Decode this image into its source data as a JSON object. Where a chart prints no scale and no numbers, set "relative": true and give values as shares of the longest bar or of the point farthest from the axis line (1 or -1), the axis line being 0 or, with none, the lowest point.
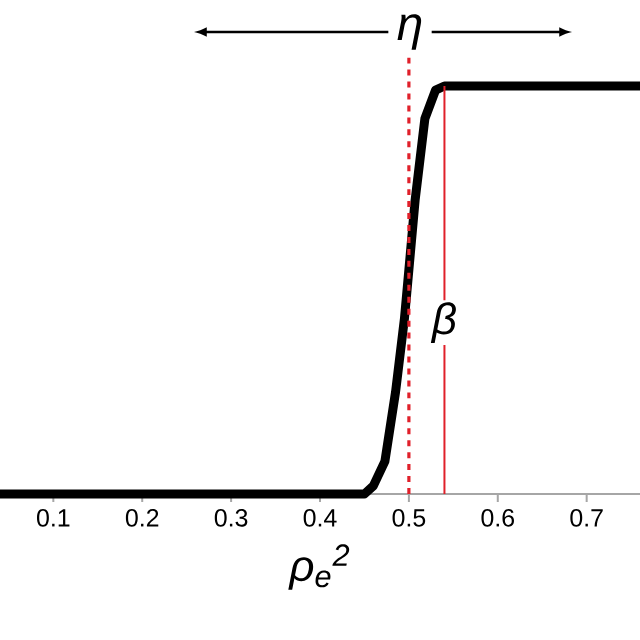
{
  "chart_data": {
    "type": "line",
    "relative": true,
    "xlabel": "ρ$_{e}$$^{2}$",
    "xlim": [
      0.04,
      0.76
    ],
    "xticks": [
      0.1,
      0.2,
      0.3,
      0.4,
      0.5,
      0.6,
      0.7
    ],
    "series": [
      {
        "color": "#000000",
        "x": [
          0.04,
          0.45,
          0.46,
          0.473,
          0.485,
          0.495,
          0.5,
          0.507,
          0.518,
          0.53,
          0.54,
          0.76
        ],
        "values": [
          0,
          0,
          0.02,
          0.08,
          0.25,
          0.43,
          0.55,
          0.72,
          0.92,
          0.99,
          1,
          1
        ]
      }
    ],
    "ref_lines": [
      {
        "axis": "x",
        "value": 0.5,
        "color": "#e0202a",
        "line_style": "dashed"
      },
      {
        "axis": "x",
        "value": 0.54,
        "color": "#e0202a",
        "line_style": "solid",
        "label": "β"
      }
    ],
    "annotations": [
      "η"
    ],
    "grid": false,
    "marker": "none",
    "line_style": "solid"
  }
}
